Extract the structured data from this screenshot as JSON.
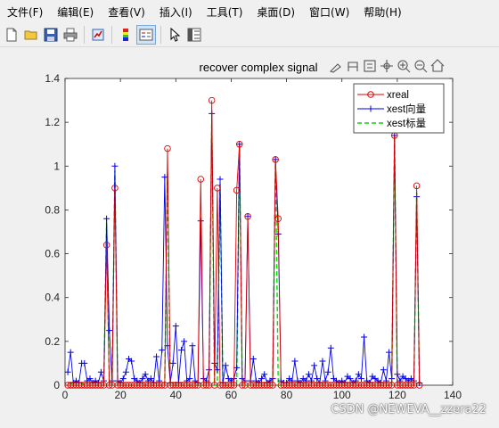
{
  "menu": [
    "文件(F)",
    "编辑(E)",
    "查看(V)",
    "插入(I)",
    "工具(T)",
    "桌面(D)",
    "窗口(W)",
    "帮助(H)"
  ],
  "toolbar": {
    "icons": [
      "new-file-icon",
      "open-folder-icon",
      "save-icon",
      "print-icon",
      "link-plot-icon",
      "colorbar-icon",
      "legend-icon",
      "pointer-icon",
      "property-inspector-icon"
    ]
  },
  "axes_toolbar": {
    "icons": [
      "brush-icon",
      "data-tips-icon",
      "rotate-icon",
      "pan-icon",
      "zoom-in-icon",
      "zoom-out-icon",
      "home-icon"
    ]
  },
  "colors": {
    "xreal": "#e00000",
    "xest_vector": "#0000ee",
    "xest_scalar": "#00dd00"
  },
  "watermark": "CSDN @NEWEVA__zzera22",
  "chart_data": {
    "type": "line",
    "title": "recover  complex signal",
    "xlabel": "",
    "ylabel": "",
    "xlim": [
      0,
      140
    ],
    "ylim": [
      0,
      1.4
    ],
    "xticks": [
      "0",
      "20",
      "40",
      "60",
      "80",
      "100",
      "120",
      "140"
    ],
    "yticks": [
      "0",
      "0.2",
      "0.4",
      "0.6",
      "0.8",
      "1",
      "1.2",
      "1.4"
    ],
    "grid": false,
    "legend_position": "top-right",
    "series": [
      {
        "name": "xreal",
        "style": "red-circle",
        "spikes": [
          [
            15,
            0.64
          ],
          [
            18,
            0.9
          ],
          [
            37,
            1.08
          ],
          [
            49,
            0.94
          ],
          [
            53,
            1.3
          ],
          [
            55,
            0.9
          ],
          [
            62,
            0.89
          ],
          [
            63,
            1.1
          ],
          [
            66,
            0.77
          ],
          [
            76,
            1.03
          ],
          [
            77,
            0.76
          ],
          [
            119,
            1.14
          ],
          [
            127,
            0.91
          ]
        ]
      },
      {
        "name": "xest向量",
        "style": "blue-plus",
        "x": [
          1,
          2,
          3,
          4,
          5,
          6,
          7,
          8,
          9,
          10,
          11,
          12,
          13,
          14,
          15,
          16,
          17,
          18,
          19,
          20,
          21,
          22,
          23,
          24,
          25,
          26,
          27,
          28,
          29,
          30,
          31,
          32,
          33,
          34,
          35,
          36,
          37,
          38,
          39,
          40,
          41,
          42,
          43,
          44,
          45,
          46,
          47,
          48,
          49,
          50,
          51,
          52,
          53,
          54,
          55,
          56,
          57,
          58,
          59,
          60,
          61,
          62,
          63,
          64,
          65,
          66,
          67,
          68,
          69,
          70,
          71,
          72,
          73,
          74,
          75,
          76,
          77,
          78,
          79,
          80,
          81,
          82,
          83,
          84,
          85,
          86,
          87,
          88,
          89,
          90,
          91,
          92,
          93,
          94,
          95,
          96,
          97,
          98,
          99,
          100,
          101,
          102,
          103,
          104,
          105,
          106,
          107,
          108,
          109,
          110,
          111,
          112,
          113,
          114,
          115,
          116,
          117,
          118,
          119,
          120,
          121,
          122,
          123,
          124,
          125,
          126,
          127,
          128
        ],
        "values": [
          0.06,
          0.15,
          0.01,
          0.02,
          0.01,
          0.1,
          0.1,
          0.02,
          0.03,
          0.01,
          0.02,
          0.01,
          0.06,
          0.02,
          0.76,
          0.25,
          0.02,
          1.0,
          0.02,
          0.01,
          0.03,
          0.06,
          0.12,
          0.11,
          0.03,
          0.02,
          0.01,
          0.03,
          0.05,
          0.02,
          0.03,
          0.01,
          0.13,
          0.02,
          0.16,
          0.95,
          0.18,
          0.01,
          0.1,
          0.27,
          0.01,
          0.16,
          0.2,
          0.02,
          0.03,
          0.18,
          0.02,
          0.01,
          0.75,
          0.03,
          0.02,
          0.07,
          1.24,
          0.1,
          0.07,
          0.94,
          0.01,
          0.09,
          0.03,
          0.02,
          0.03,
          0.08,
          1.1,
          0.03,
          0.02,
          0.77,
          0.02,
          0.12,
          0.02,
          0.01,
          0.03,
          0.05,
          0.01,
          0.02,
          0.03,
          1.03,
          0.69,
          0.02,
          0.01,
          0.01,
          0.03,
          0.02,
          0.11,
          0.02,
          0.01,
          0.03,
          0.02,
          0.05,
          0.02,
          0.09,
          0.03,
          0.01,
          0.11,
          0.02,
          0.06,
          0.17,
          0.03,
          0.02,
          0.01,
          0.02,
          0.01,
          0.04,
          0.03,
          0.01,
          0.02,
          0.05,
          0.03,
          0.22,
          0.02,
          0.01,
          0.04,
          0.03,
          0.02,
          0.01,
          0.07,
          0.02,
          0.15,
          0.03,
          1.14,
          0.05,
          0.02,
          0.04,
          0.03,
          0.02,
          0.03,
          0.02,
          0.86,
          0.01
        ]
      },
      {
        "name": "xest标量",
        "style": "green-dashed",
        "x": [
          1,
          2,
          3,
          4,
          5,
          6,
          7,
          8,
          9,
          10,
          11,
          12,
          13,
          14,
          15,
          16,
          17,
          18,
          19,
          20,
          21,
          22,
          23,
          24,
          25,
          26,
          27,
          28,
          29,
          30,
          31,
          32,
          33,
          34,
          35,
          36,
          37,
          38,
          39,
          40,
          41,
          42,
          43,
          44,
          45,
          46,
          47,
          48,
          49,
          50,
          51,
          52,
          53,
          54,
          55,
          56,
          57,
          58,
          59,
          60,
          61,
          62,
          63,
          64,
          65,
          66,
          67,
          68,
          69,
          70,
          71,
          72,
          73,
          74,
          75,
          76,
          77,
          78,
          79,
          80,
          81,
          82,
          83,
          84,
          85,
          86,
          87,
          88,
          89,
          90,
          91,
          92,
          93,
          94,
          95,
          96,
          97,
          98,
          99,
          100,
          101,
          102,
          103,
          104,
          105,
          106,
          107,
          108,
          109,
          110,
          111,
          112,
          113,
          114,
          115,
          116,
          117,
          118,
          119,
          120,
          121,
          122,
          123,
          124,
          125,
          126,
          127,
          128
        ],
        "values": [
          0.01,
          0.01,
          0.0,
          0.0,
          0.0,
          0.01,
          0.0,
          0.0,
          0.0,
          0.0,
          0.0,
          0.0,
          0.0,
          0.0,
          0.74,
          0.0,
          0.0,
          0.98,
          0.0,
          0.0,
          0.0,
          0.0,
          0.0,
          0.0,
          0.0,
          0.0,
          0.0,
          0.0,
          0.0,
          0.0,
          0.0,
          0.0,
          0.0,
          0.0,
          0.0,
          0.0,
          0.97,
          0.0,
          0.0,
          0.0,
          0.0,
          0.0,
          0.0,
          0.0,
          0.0,
          0.0,
          0.0,
          0.0,
          0.0,
          0.0,
          0.0,
          0.0,
          1.22,
          0.0,
          0.0,
          0.92,
          0.0,
          0.0,
          0.0,
          0.0,
          0.0,
          0.0,
          1.1,
          0.0,
          0.0,
          0.0,
          0.0,
          0.0,
          0.0,
          0.0,
          0.0,
          0.0,
          0.0,
          0.0,
          0.0,
          1.03,
          0.0,
          0.0,
          0.0,
          0.0,
          0.0,
          0.0,
          0.0,
          0.0,
          0.0,
          0.0,
          0.0,
          0.0,
          0.0,
          0.0,
          0.0,
          0.0,
          0.0,
          0.0,
          0.0,
          0.0,
          0.0,
          0.0,
          0.0,
          0.0,
          0.0,
          0.0,
          0.0,
          0.0,
          0.0,
          0.0,
          0.0,
          0.0,
          0.0,
          0.0,
          0.0,
          0.0,
          0.0,
          0.0,
          0.0,
          0.0,
          0.0,
          0.0,
          1.14,
          0.0,
          0.0,
          0.0,
          0.0,
          0.0,
          0.0,
          0.0,
          0.88,
          0.0
        ]
      }
    ]
  }
}
